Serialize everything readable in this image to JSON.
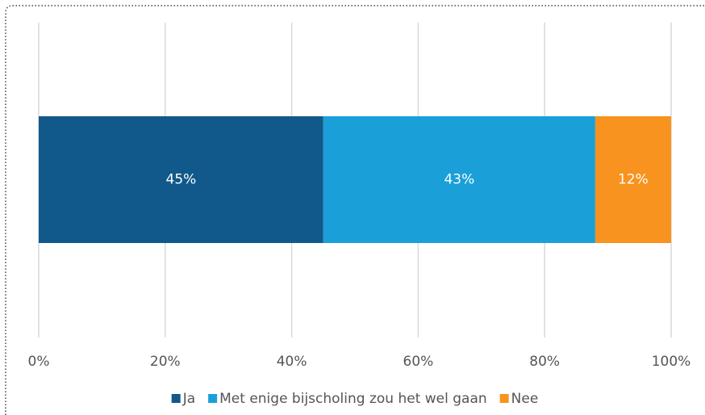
{
  "chart_data": {
    "type": "stacked_bar",
    "orientation": "horizontal",
    "categories": [
      null
    ],
    "series": [
      {
        "name": "Ja",
        "color": "#10598a",
        "values": [
          45
        ],
        "value_labels": [
          "45%"
        ]
      },
      {
        "name": "Met enige bijscholing zou het wel gaan",
        "color": "#1a9fd9",
        "values": [
          43
        ],
        "value_labels": [
          "43%"
        ]
      },
      {
        "name": "Nee",
        "color": "#f7931e",
        "values": [
          12
        ],
        "value_labels": [
          "12%"
        ]
      }
    ],
    "xlim": [
      0,
      100
    ],
    "xticks": [
      {
        "value": 0,
        "label": "0%"
      },
      {
        "value": 20,
        "label": "20%"
      },
      {
        "value": 40,
        "label": "40%"
      },
      {
        "value": 60,
        "label": "60%"
      },
      {
        "value": 80,
        "label": "80%"
      },
      {
        "value": 100,
        "label": "100%"
      }
    ],
    "grid": true,
    "legend": "bottom"
  }
}
